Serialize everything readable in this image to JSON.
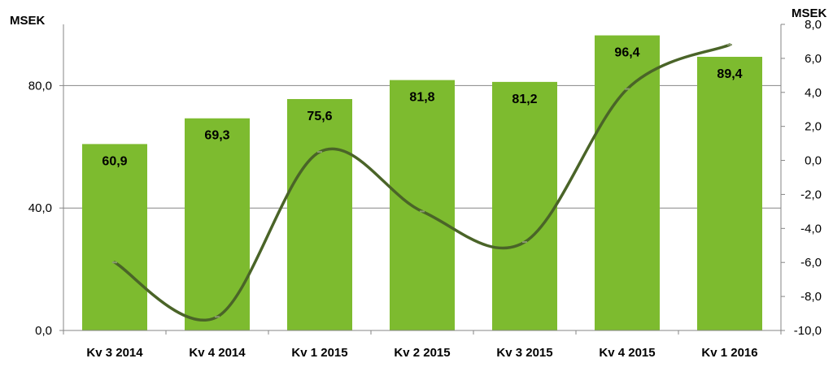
{
  "chart_data": {
    "type": "bar",
    "categories": [
      "Kv 3 2014",
      "Kv 4 2014",
      "Kv 1 2015",
      "Kv 2 2015",
      "Kv 3 2015",
      "Kv 4 2015",
      "Kv 1 2016"
    ],
    "series": [
      {
        "type": "bar",
        "axis": "left",
        "values": [
          60.9,
          69.3,
          75.6,
          81.8,
          81.2,
          96.4,
          89.4
        ],
        "color": "#7dbb2f"
      },
      {
        "type": "line",
        "axis": "right",
        "values": [
          -6.0,
          -9.2,
          0.5,
          -3.0,
          -4.8,
          4.2,
          6.8
        ],
        "color": "#4a6428"
      }
    ],
    "data_labels": [
      "60,9",
      "69,3",
      "75,6",
      "81,8",
      "81,2",
      "96,4",
      "89,4"
    ],
    "left_axis": {
      "label": "MSEK",
      "ylim": [
        0,
        100
      ],
      "ticks": [
        0,
        40,
        80
      ],
      "tick_labels": [
        "0,0",
        "40,0",
        "80,0"
      ]
    },
    "right_axis": {
      "label": "MSEK",
      "ylim": [
        -10,
        8
      ],
      "ticks": [
        -10,
        -8,
        -6,
        -4,
        -2,
        0,
        2,
        4,
        6,
        8
      ],
      "tick_labels": [
        "-10,0",
        "-8,0",
        "-6,0",
        "-4,0",
        "-2,0",
        "0,0",
        "2,0",
        "4,0",
        "6,0",
        "8,0"
      ]
    },
    "grid": true,
    "legend": "none"
  }
}
